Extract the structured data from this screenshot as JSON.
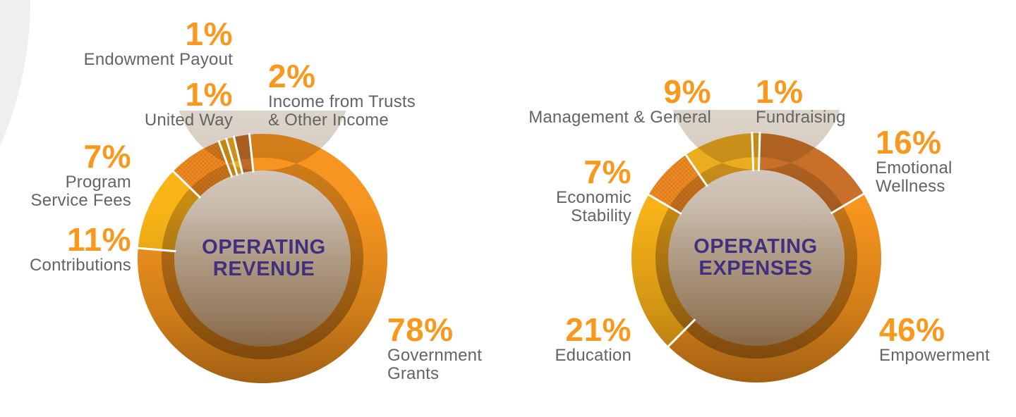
{
  "figure": {
    "background": "#FFFFFF",
    "corner_decoration_color": "#EFEFEF",
    "percent_color": "#F8981D",
    "label_color": "#636466",
    "title_color": "#40307E",
    "divider_color": "#FFFFFF",
    "shadow_rgb": "94,53,8"
  },
  "chart_data": [
    {
      "type": "pie",
      "variant": "donut",
      "title": "OPERATING REVENUE",
      "title_lines": [
        "OPERATING",
        "REVENUE"
      ],
      "legend_position": "callouts-around-ring",
      "direction": "clockwise",
      "start_angle_deg": -6,
      "slices": [
        {
          "label": "Government Grants",
          "label_lines": [
            "Government",
            "Grants"
          ],
          "value_pct": 78,
          "pct_text": "78%",
          "color": "#F6951F",
          "hatched": false
        },
        {
          "label": "Contributions",
          "label_lines": [
            "Contributions"
          ],
          "value_pct": 11,
          "pct_text": "11%",
          "color": "#F9B517",
          "hatched": false
        },
        {
          "label": "Program Service Fees",
          "label_lines": [
            "Program",
            "Service Fees"
          ],
          "value_pct": 7,
          "pct_text": "7%",
          "color": "#F18A21",
          "hatched": true
        },
        {
          "label": "Endowment Payout",
          "label_lines": [
            "Endowment Payout"
          ],
          "value_pct": 1,
          "pct_text": "1%",
          "color": "#E39F1B",
          "hatched": false
        },
        {
          "label": "United Way",
          "label_lines": [
            "United Way"
          ],
          "value_pct": 1,
          "pct_text": "1%",
          "color": "#EFB01E",
          "hatched": false
        },
        {
          "label": "Income from Trusts & Other Income",
          "label_lines": [
            "Income from Trusts",
            "& Other Income"
          ],
          "value_pct": 2,
          "pct_text": "2%",
          "color": "#BE6B28",
          "hatched": false
        }
      ]
    },
    {
      "type": "pie",
      "variant": "donut",
      "title": "OPERATING EXPENSES",
      "title_lines": [
        "OPERATING",
        "EXPENSES"
      ],
      "legend_position": "callouts-around-ring",
      "direction": "clockwise",
      "start_angle_deg": -2,
      "slices": [
        {
          "label": "Fundraising",
          "label_lines": [
            "Fundraising"
          ],
          "value_pct": 1,
          "pct_text": "1%",
          "color": "#E7A51E",
          "hatched": false
        },
        {
          "label": "Emotional Wellness",
          "label_lines": [
            "Emotional",
            "Wellness"
          ],
          "value_pct": 16,
          "pct_text": "16%",
          "color": "#C8702A",
          "hatched": false
        },
        {
          "label": "Empowerment",
          "label_lines": [
            "Empowerment"
          ],
          "value_pct": 46,
          "pct_text": "46%",
          "color": "#F6951F",
          "hatched": false
        },
        {
          "label": "Education",
          "label_lines": [
            "Education"
          ],
          "value_pct": 21,
          "pct_text": "21%",
          "color": "#F8B318",
          "hatched": false
        },
        {
          "label": "Economic Stability",
          "label_lines": [
            "Economic",
            "Stability"
          ],
          "value_pct": 7,
          "pct_text": "7%",
          "color": "#F08B24",
          "hatched": true
        },
        {
          "label": "Management & General",
          "label_lines": [
            "Management & General"
          ],
          "value_pct": 9,
          "pct_text": "9%",
          "color": "#EBAC20",
          "hatched": false
        }
      ]
    }
  ]
}
